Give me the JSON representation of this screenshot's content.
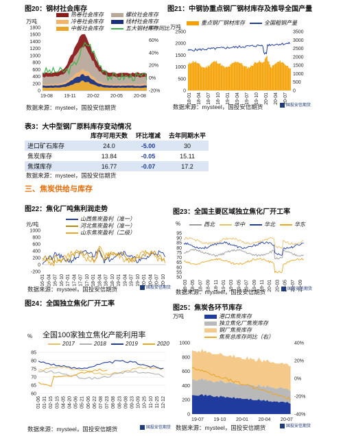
{
  "fig20": {
    "title": "图20：钢材社会库存",
    "unit": "万吨",
    "legend": [
      "热卷社会库存",
      "螺纹社会库存",
      "冷卷社会库存",
      "线材社会库存",
      "中板社会库存",
      "五大钢材库存同比"
    ],
    "colors": [
      "#8b1a1a",
      "#b9a99b",
      "#f1b26a",
      "#1a2f7a",
      "#e8a72a",
      "#3bb34a"
    ],
    "yleft": [
      "1800",
      "1600",
      "1400",
      "1200",
      "1000",
      "800",
      "600",
      "400",
      "200",
      "0"
    ],
    "yright": [
      "80%",
      "60%",
      "40%",
      "20%",
      "0%",
      "-20%"
    ],
    "xticks": [
      "19-08",
      "19-11",
      "20-02",
      "20-05",
      "20-08"
    ]
  },
  "fig21": {
    "title": "图21：中钢协重点钢厂钢材库存及推导全国产量",
    "unit": "万吨",
    "legend": [
      "重点钢厂钢材库存",
      "全国粗钢产量"
    ],
    "colors": [
      "#f5a000",
      "#1f3b9e"
    ],
    "yleft": [
      "2500",
      "2000",
      "1500",
      "1000",
      "500",
      "0"
    ],
    "yright": [
      "3500",
      "3000",
      "2500",
      "2000",
      "1500",
      "1000",
      "500",
      "0"
    ],
    "xticks": [
      "18-01",
      "18-04",
      "18-07",
      "18-10",
      "19-01",
      "19-04",
      "19-07",
      "19-10",
      "20-01",
      "20-04",
      "20-07"
    ]
  },
  "source": "数据来源：mysteel，国投安信期货",
  "logo": "国投安信期货",
  "table3": {
    "title": "表3：大中型钢厂原料库存变动情况",
    "headers": [
      "",
      "库存可用天数",
      "环比增减",
      "去年同期水平"
    ],
    "rows": [
      [
        "进口矿石库存",
        "24.0",
        "-5.00",
        "30"
      ],
      [
        "焦炭库存",
        "13.84",
        "-0.05",
        "15.11"
      ],
      [
        "焦煤库存",
        "16.77",
        "-0.07",
        "17.2"
      ]
    ]
  },
  "section": "三、焦炭供给与库存",
  "fig22": {
    "title": "图22：焦化厂吨焦利润走势",
    "unit": "元/吨",
    "legend": [
      "山西焦炭盈利（准一）",
      "河北焦炭盈利（准一）",
      "山东焦炭盈利（二级）"
    ],
    "colors": [
      "#1f3b9e",
      "#b8860b",
      "#e8a72a"
    ],
    "yticks": [
      "1000",
      "800",
      "600",
      "400",
      "200",
      "0",
      "-200"
    ],
    "xticks": [
      "16-01",
      "16-04",
      "16-07",
      "16-10",
      "17-01",
      "17-04",
      "17-07",
      "17-10",
      "18-01",
      "18-04",
      "18-07",
      "18-10",
      "19-01",
      "19-04",
      "19-07",
      "19-10",
      "20-01",
      "20-04",
      "20-07",
      "20-10"
    ]
  },
  "fig23": {
    "title": "图23：全国主要区域独立焦化厂开工率",
    "unit": "%",
    "legend": [
      "西北",
      "华中",
      "华北",
      "华东"
    ],
    "colors": [
      "#9a9a9a",
      "#e8c06a",
      "#1f3b9e",
      "#e8a72a"
    ],
    "yticks": [
      "95",
      "90",
      "85",
      "80",
      "75",
      "70",
      "65",
      "60",
      "55",
      "50"
    ],
    "xticks": [
      "18-03",
      "18-05",
      "18-07",
      "18-09",
      "18-11",
      "19-01",
      "19-03",
      "19-05",
      "19-07",
      "19-09",
      "19-11",
      "20-01",
      "20-03",
      "20-05",
      "20-07",
      "20-09"
    ]
  },
  "fig24": {
    "title": "图24：全国独立焦化厂开工率",
    "unit": "%",
    "subtitle": "全国100家独立焦化产能利用率",
    "legend": [
      "2017",
      "2018",
      "2019",
      "2020"
    ],
    "colors": [
      "#e8c06a",
      "#b0b0b0",
      "#1f3b9e",
      "#e8a72a"
    ],
    "yticks": [
      "85",
      "80",
      "75",
      "70",
      "65",
      "60"
    ],
    "xticks": [
      "01-06",
      "01-31",
      "02-15",
      "03-15",
      "04-05",
      "04-20",
      "05-06",
      "05-21",
      "06-06",
      "06-22",
      "07-08",
      "07-23",
      "08-08",
      "08-23",
      "09-08",
      "09-23",
      "10-09",
      "10-25",
      "11-10",
      "11-25",
      "12-12"
    ]
  },
  "fig25": {
    "title": "图25：焦炭各环节库存",
    "unit": "万吨",
    "legend": [
      "港口焦炭库存",
      "独立焦化厂焦炭库存",
      "钢厂焦炭库存",
      "焦炭总库存同比（右）"
    ],
    "colors": [
      "#1f3b9e",
      "#b9b9b9",
      "#f5c98a",
      "#e8a72a"
    ],
    "yleft": [
      "1000",
      "800",
      "600",
      "400",
      "200",
      "0"
    ],
    "yright": [
      "40%",
      "20%",
      "0%",
      "-20%",
      "-40%"
    ],
    "xticks": [
      "19-07",
      "19-10",
      "20-01",
      "20-04",
      "20-07"
    ]
  }
}
